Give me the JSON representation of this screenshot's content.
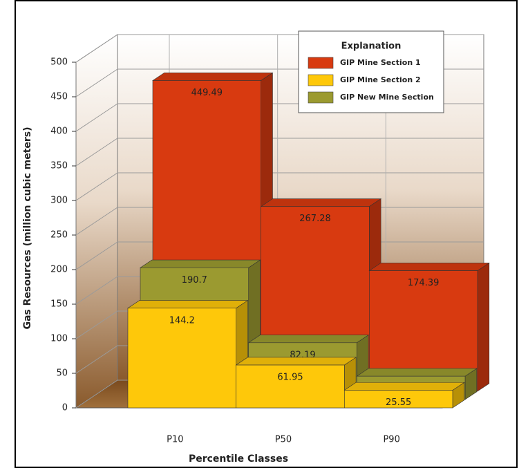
{
  "chart_data": {
    "type": "bar3d",
    "categories": [
      "P10",
      "P50",
      "P90"
    ],
    "series": [
      {
        "name": "GIP Mine Section 1",
        "color": "#d83a10",
        "values": [
          449.49,
          267.28,
          174.39
        ]
      },
      {
        "name": "GIP Mine Section 2",
        "color": "#fec80a",
        "values": [
          144.2,
          61.95,
          25.55
        ]
      },
      {
        "name": "GIP New Mine Section",
        "color": "#9b9a30",
        "values": [
          190.7,
          82.19,
          33.81
        ]
      }
    ],
    "depth_order": [
      1,
      2,
      0
    ],
    "xlabel": "Percentile Classes",
    "ylabel": "Gas Resources (million cubic meters)",
    "ylim": [
      0,
      500
    ],
    "yticks": [
      0,
      50,
      100,
      150,
      200,
      250,
      300,
      350,
      400,
      450,
      500
    ],
    "grid": true,
    "legend": "upper right",
    "legend_title": "Explanation"
  }
}
